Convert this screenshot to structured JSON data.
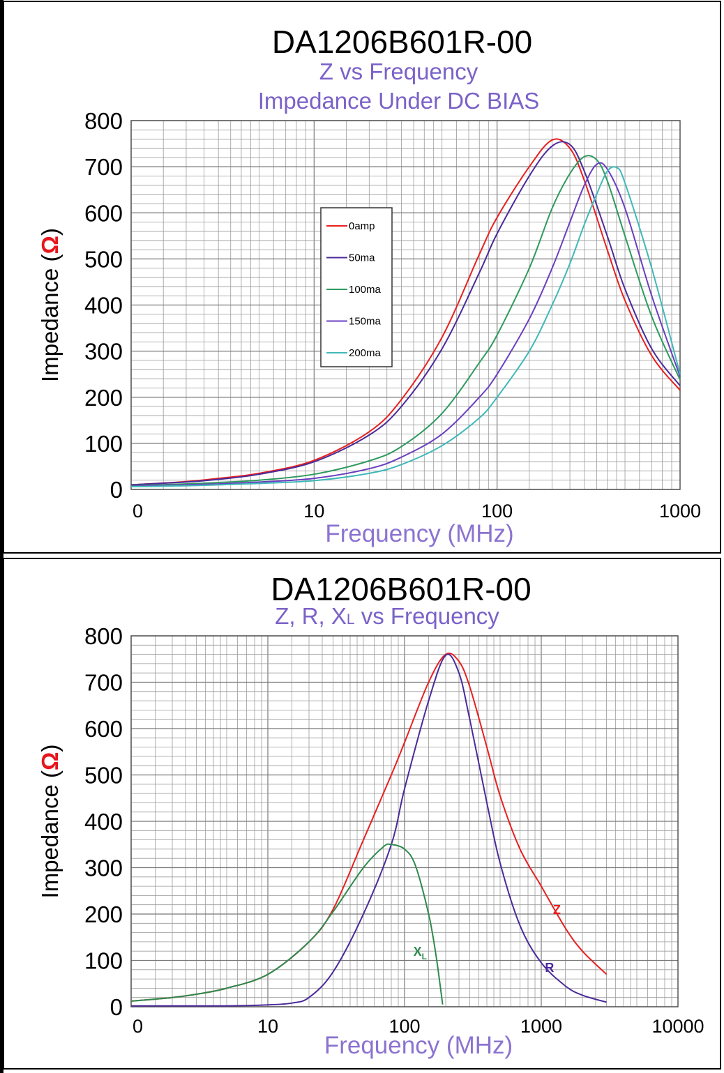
{
  "chart_data": [
    {
      "type": "line",
      "title": "DA1206B601R-00",
      "subtitle": [
        "Z vs Frequency",
        "Impedance Under DC BIAS"
      ],
      "xlabel": "Frequency (MHz)",
      "ylabel": "Impedance (Ω)",
      "ylabel_parts": [
        "Impedance (",
        "Ω",
        ")"
      ],
      "xscale": "log",
      "xlim": [
        1,
        1000
      ],
      "ylim": [
        0,
        800
      ],
      "x_ticks": [
        1,
        10,
        100,
        1000
      ],
      "x_tick_labels": [
        "0",
        "10",
        "100",
        "1000"
      ],
      "y_ticks": [
        0,
        100,
        200,
        300,
        400,
        500,
        600,
        700,
        800
      ],
      "y_tick_labels": [
        "0",
        "100",
        "200",
        "300",
        "400",
        "500",
        "600",
        "700",
        "800"
      ],
      "grid": true,
      "legend_position": "center-left",
      "series": [
        {
          "name": "0amp",
          "color": "#e82020",
          "x": [
            1,
            2,
            3,
            5,
            10,
            20,
            30,
            50,
            80,
            100,
            150,
            200,
            250,
            300,
            400,
            500,
            700,
            1000
          ],
          "y": [
            10,
            17,
            24,
            35,
            63,
            125,
            195,
            330,
            510,
            590,
            700,
            758,
            740,
            670,
            520,
            410,
            290,
            215
          ]
        },
        {
          "name": "50ma",
          "color": "#4b2a9a",
          "x": [
            1,
            2,
            3,
            5,
            10,
            20,
            30,
            50,
            80,
            100,
            150,
            200,
            250,
            300,
            400,
            500,
            700,
            1000
          ],
          "y": [
            10,
            16,
            22,
            33,
            60,
            118,
            180,
            305,
            470,
            555,
            680,
            745,
            748,
            690,
            550,
            435,
            305,
            225
          ]
        },
        {
          "name": "100ma",
          "color": "#2e9a5e",
          "x": [
            1,
            2,
            3,
            5,
            10,
            20,
            30,
            50,
            80,
            100,
            150,
            200,
            250,
            300,
            350,
            400,
            500,
            700,
            1000
          ],
          "y": [
            8,
            12,
            15,
            20,
            33,
            62,
            93,
            165,
            275,
            335,
            480,
            610,
            685,
            722,
            715,
            670,
            550,
            375,
            238
          ]
        },
        {
          "name": "150ma",
          "color": "#6a3fc0",
          "x": [
            1,
            2,
            3,
            5,
            10,
            20,
            30,
            50,
            80,
            100,
            150,
            200,
            250,
            300,
            350,
            400,
            500,
            700,
            1000
          ],
          "y": [
            7,
            10,
            12,
            16,
            24,
            45,
            70,
            120,
            200,
            250,
            370,
            480,
            580,
            660,
            705,
            695,
            610,
            420,
            245
          ]
        },
        {
          "name": "200ma",
          "color": "#40b8b8",
          "x": [
            1,
            2,
            3,
            5,
            10,
            20,
            30,
            50,
            80,
            100,
            150,
            200,
            250,
            300,
            350,
            400,
            450,
            500,
            700,
            1000
          ],
          "y": [
            6,
            8,
            10,
            13,
            19,
            35,
            54,
            95,
            155,
            200,
            300,
            400,
            490,
            575,
            640,
            690,
            698,
            665,
            480,
            250
          ]
        }
      ]
    },
    {
      "type": "line",
      "title": "DA1206B601R-00",
      "subtitle": [
        "Z, R, XL vs Frequency"
      ],
      "subtitle_parts": [
        "Z, R, X",
        "L",
        " vs Frequency"
      ],
      "xlabel": "Frequency (MHz)",
      "ylabel": "Impedance (Ω)",
      "ylabel_parts": [
        "Impedance (",
        "Ω",
        ")"
      ],
      "xscale": "log",
      "xlim": [
        1,
        10000
      ],
      "ylim": [
        0,
        800
      ],
      "x_ticks": [
        1,
        10,
        100,
        1000,
        10000
      ],
      "x_tick_labels": [
        "0",
        "10",
        "100",
        "1000",
        "10000"
      ],
      "y_ticks": [
        0,
        100,
        200,
        300,
        400,
        500,
        600,
        700,
        800
      ],
      "y_tick_labels": [
        "0",
        "100",
        "200",
        "300",
        "400",
        "500",
        "600",
        "700",
        "800"
      ],
      "grid": true,
      "annotations": [
        {
          "text": "Z",
          "color": "#e82020",
          "x": 1300,
          "y": 200
        },
        {
          "text": "R",
          "color": "#4b2a9a",
          "x": 1150,
          "y": 75
        },
        {
          "text": "XL",
          "color": "#2e8a4e",
          "x": 130,
          "y": 110
        }
      ],
      "series": [
        {
          "name": "Z",
          "color": "#e82020",
          "x": [
            1,
            2,
            3,
            5,
            10,
            20,
            30,
            50,
            80,
            100,
            150,
            200,
            250,
            300,
            400,
            500,
            700,
            1000,
            1500,
            2000,
            3000
          ],
          "y": [
            12,
            20,
            27,
            40,
            70,
            140,
            210,
            360,
            500,
            570,
            700,
            760,
            745,
            690,
            560,
            455,
            340,
            260,
            170,
            120,
            70
          ]
        },
        {
          "name": "R",
          "color": "#4b2a9a",
          "x": [
            1,
            5,
            10,
            15,
            20,
            30,
            50,
            80,
            100,
            150,
            200,
            250,
            300,
            400,
            500,
            700,
            1000,
            1500,
            2000,
            3000
          ],
          "y": [
            2,
            2,
            4,
            8,
            20,
            75,
            200,
            350,
            470,
            660,
            758,
            720,
            620,
            440,
            310,
            175,
            95,
            45,
            25,
            10
          ]
        },
        {
          "name": "XL",
          "color": "#2e8a4e",
          "x": [
            1,
            2,
            3,
            5,
            10,
            20,
            30,
            50,
            70,
            80,
            100,
            120,
            150,
            170,
            190
          ],
          "y": [
            12,
            20,
            27,
            40,
            70,
            140,
            205,
            300,
            345,
            350,
            340,
            305,
            200,
            110,
            5
          ]
        }
      ]
    }
  ]
}
